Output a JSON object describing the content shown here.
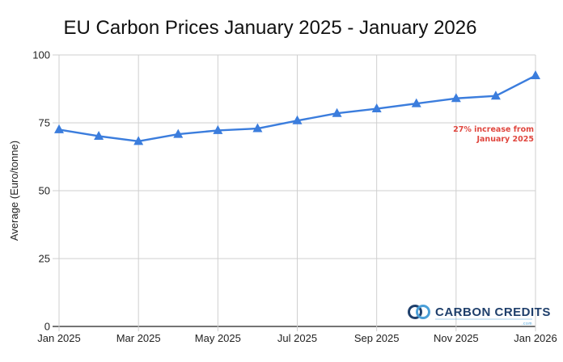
{
  "chart_data": {
    "type": "line",
    "title": "EU Carbon Prices January 2025 - January 2026",
    "xlabel": "",
    "ylabel": "Average (Euro/tonne)",
    "ylim": [
      0,
      100
    ],
    "yticks": [
      0,
      25,
      50,
      75,
      100
    ],
    "grid": true,
    "x": [
      "2025-01",
      "2025-02",
      "2025-03",
      "2025-04",
      "2025-05",
      "2025-06",
      "2025-07",
      "2025-08",
      "2025-09",
      "2025-10",
      "2025-11",
      "2025-12",
      "2026-01"
    ],
    "xtick_labels": [
      "Jan 2025",
      "Mar 2025",
      "May 2025",
      "Jul 2025",
      "Sep 2025",
      "Nov 2025",
      "Jan 2026"
    ],
    "xtick_index": [
      0,
      2,
      4,
      6,
      8,
      10,
      12
    ],
    "series": [
      {
        "color": "#3b7ddd",
        "marker": "triangle",
        "values": [
          72.5,
          70.1,
          68.2,
          70.8,
          72.2,
          72.9,
          75.8,
          78.5,
          80.2,
          82.1,
          84.0,
          84.9,
          92.4
        ]
      }
    ],
    "annotation": {
      "lines": [
        "27% increase from",
        "January 2025"
      ],
      "color": "#e0463e"
    }
  },
  "logo": {
    "text": "CARBON CREDITS",
    "sub": ".com",
    "colors": {
      "dark": "#1f3f6b",
      "light": "#4a9fd8"
    }
  }
}
